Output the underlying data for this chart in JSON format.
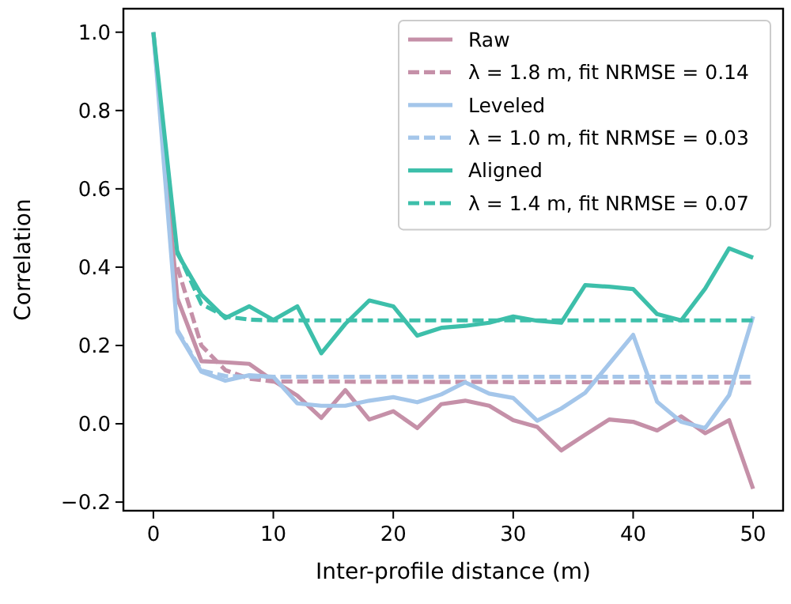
{
  "chart_data": {
    "type": "line",
    "xlabel": "Inter-profile distance (m)",
    "ylabel": "Correlation",
    "x": [
      0,
      2,
      4,
      6,
      8,
      10,
      12,
      14,
      16,
      18,
      20,
      22,
      24,
      26,
      28,
      30,
      32,
      34,
      36,
      38,
      40,
      42,
      44,
      46,
      48,
      50
    ],
    "xlim": [
      -2.5,
      52.5
    ],
    "xticks": [
      0,
      10,
      20,
      30,
      40,
      50
    ],
    "ylim": [
      -0.222,
      1.06
    ],
    "yticks": [
      {
        "value": -0.2,
        "label": "−0.2"
      },
      {
        "value": 0,
        "label": "0.0"
      },
      0.2,
      0.4,
      0.6,
      0.8,
      {
        "value": 1,
        "label": "1.0"
      }
    ],
    "grid": false,
    "legend": "top right",
    "series": [
      {
        "name": "Raw",
        "color": "#c590a8",
        "line_style": "solid",
        "values": [
          1.0,
          0.32,
          0.16,
          0.157,
          0.153,
          0.11,
          0.072,
          0.015,
          0.086,
          0.011,
          0.032,
          -0.011,
          0.05,
          0.059,
          0.046,
          0.009,
          -0.008,
          -0.068,
          -0.028,
          0.011,
          0.005,
          -0.017,
          0.019,
          -0.024,
          0.009,
          -0.166
        ]
      },
      {
        "name": "λ = 1.8 m, fit NRMSE = 0.14",
        "color": "#c590a8",
        "line_style": "dashed",
        "x": [
          2,
          4,
          6,
          8,
          10,
          50
        ],
        "values": [
          0.4,
          0.2,
          0.137,
          0.115,
          0.108,
          0.105
        ]
      },
      {
        "name": "Leveled",
        "color": "#a4c6ea",
        "line_style": "solid",
        "values": [
          1.0,
          0.235,
          0.133,
          0.11,
          0.124,
          0.12,
          0.052,
          0.046,
          0.046,
          0.059,
          0.068,
          0.055,
          0.075,
          0.106,
          0.077,
          0.066,
          0.008,
          0.039,
          0.079,
          0.153,
          0.227,
          0.056,
          0.005,
          -0.011,
          0.073,
          0.274
        ]
      },
      {
        "name": "λ = 1.0 m, fit NRMSE = 0.03",
        "color": "#a4c6ea",
        "line_style": "dashed",
        "x": [
          2,
          4,
          6,
          8,
          50
        ],
        "values": [
          0.239,
          0.136,
          0.122,
          0.12,
          0.12
        ]
      },
      {
        "name": "Aligned",
        "color": "#3dbfaa",
        "line_style": "solid",
        "values": [
          1.0,
          0.435,
          0.33,
          0.27,
          0.3,
          0.265,
          0.3,
          0.18,
          0.255,
          0.315,
          0.3,
          0.225,
          0.245,
          0.25,
          0.258,
          0.274,
          0.263,
          0.258,
          0.354,
          0.35,
          0.344,
          0.28,
          0.264,
          0.345,
          0.448,
          0.424
        ]
      },
      {
        "name": "λ = 1.4 m, fit NRMSE = 0.07",
        "color": "#3dbfaa",
        "line_style": "dashed",
        "x": [
          2,
          4,
          6,
          8,
          10,
          50
        ],
        "values": [
          0.44,
          0.306,
          0.274,
          0.266,
          0.264,
          0.264
        ]
      }
    ]
  }
}
